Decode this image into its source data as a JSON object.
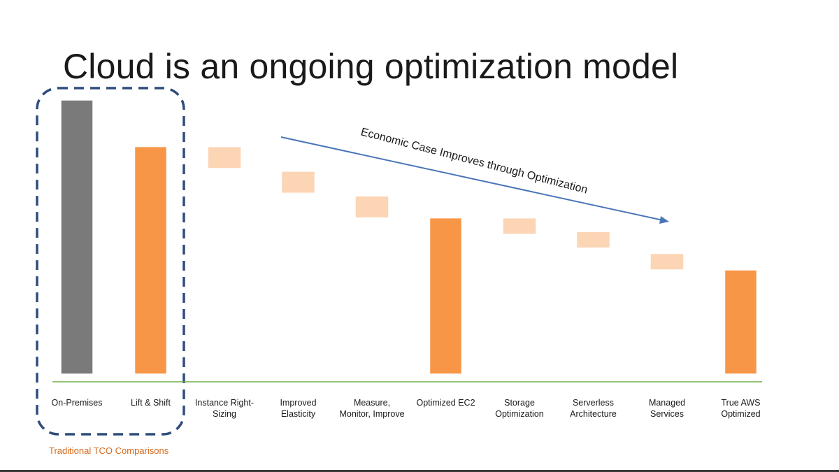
{
  "slide": {
    "title": "Cloud is an ongoing optimization model",
    "footnote": "Traditional TCO Comparisons"
  },
  "annotation": {
    "arrow_label": "Economic Case Improves through Optimization",
    "arrow_color": "#4a76b8",
    "highlight_box_color": "#2e4d7b"
  },
  "colors": {
    "on_premises": "#7a7a7a",
    "total": "#f79646",
    "step": "#fcd5b5",
    "baseline": "#70ad47"
  },
  "chart_data": {
    "type": "bar",
    "subtype": "waterfall",
    "title": "Cloud is an ongoing optimization model",
    "xlabel": "",
    "ylabel": "",
    "ylim": [
      0,
      100
    ],
    "grid": false,
    "legend": "none",
    "categories": [
      "On-Premises",
      "Lift & Shift",
      "Instance Right-Sizing",
      "Improved Elasticity",
      "Measure, Monitor, Improve",
      "Optimized EC2",
      "Storage Optimization",
      "Serverless Architecture",
      "Managed Services",
      "True AWS Optimized"
    ],
    "label_lines": [
      [
        "On-Premises"
      ],
      [
        "Lift & Shift"
      ],
      [
        "Instance Right-",
        "Sizing"
      ],
      [
        "Improved",
        "Elasticity"
      ],
      [
        "Measure,",
        "Monitor, Improve"
      ],
      [
        "Optimized EC2"
      ],
      [
        "Storage",
        "Optimization"
      ],
      [
        "Serverless",
        "Architecture"
      ],
      [
        "Managed",
        "Services"
      ],
      [
        "True AWS",
        "Optimized"
      ]
    ],
    "bars": [
      {
        "kind": "total",
        "start": 0,
        "end": 100
      },
      {
        "kind": "total",
        "start": 0,
        "end": 83
      },
      {
        "kind": "step",
        "start": 83,
        "end": 75
      },
      {
        "kind": "step",
        "start": 74,
        "end": 66
      },
      {
        "kind": "step",
        "start": 65,
        "end": 57
      },
      {
        "kind": "total",
        "start": 0,
        "end": 57
      },
      {
        "kind": "step",
        "start": 57,
        "end": 51
      },
      {
        "kind": "step",
        "start": 52,
        "end": 46
      },
      {
        "kind": "step",
        "start": 44,
        "end": 38
      },
      {
        "kind": "total",
        "start": 0,
        "end": 38
      }
    ]
  }
}
